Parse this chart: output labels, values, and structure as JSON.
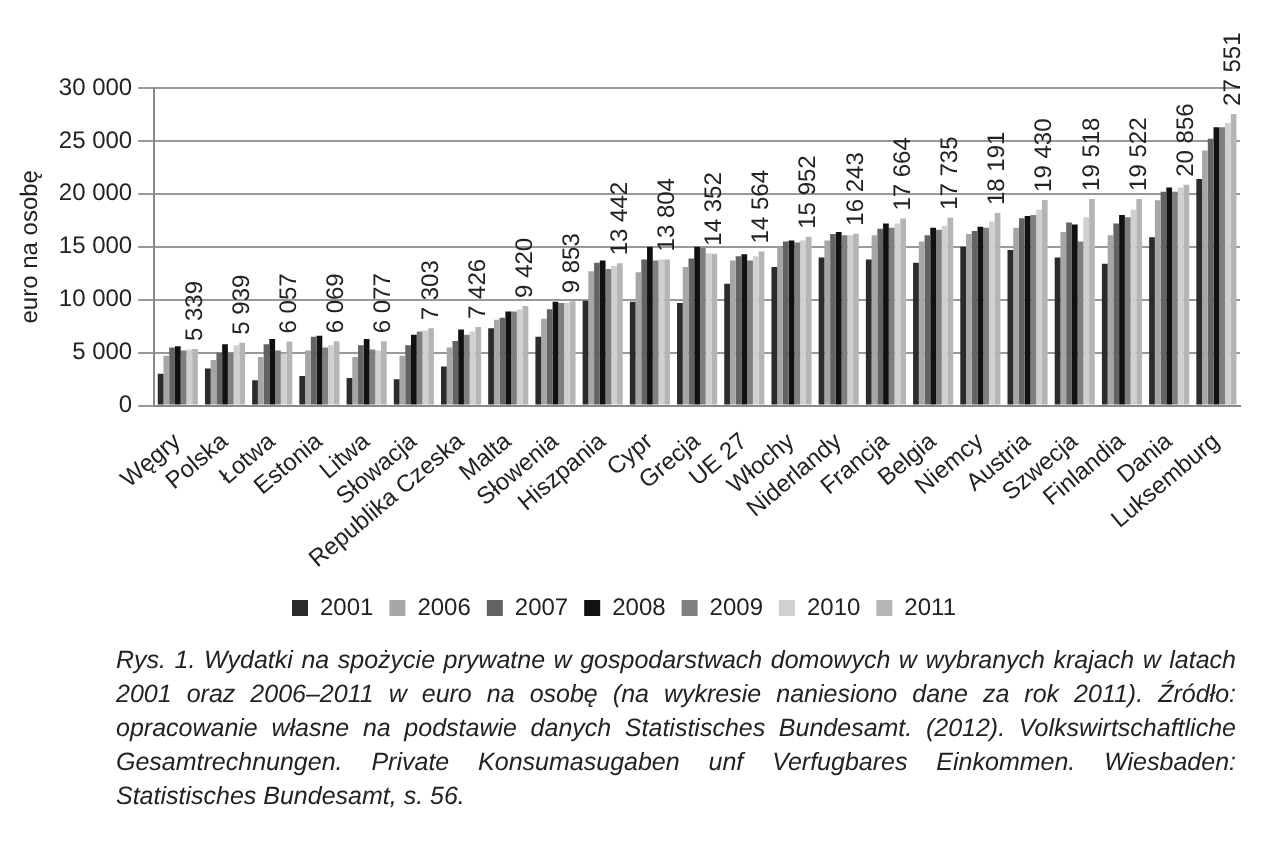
{
  "chart_data": {
    "type": "bar",
    "ylabel": "euro na osobę",
    "categories": [
      "Węgry",
      "Polska",
      "Łotwa",
      "Estonia",
      "Litwa",
      "Słowacja",
      "Republika Czeska",
      "Malta",
      "Słowenia",
      "Hiszpania",
      "Cypr",
      "Grecja",
      "UE 27",
      "Włochy",
      "Niderlandy",
      "Francja",
      "Belgia",
      "Niemcy",
      "Austria",
      "Szwecja",
      "Finlandia",
      "Dania",
      "Luksemburg"
    ],
    "series": [
      {
        "name": "2001",
        "color": "#2b2b2b",
        "values": [
          3000,
          3500,
          2400,
          2800,
          2600,
          2500,
          3700,
          7300,
          6500,
          9900,
          9800,
          9700,
          11500,
          13100,
          14000,
          13800,
          13500,
          15000,
          14700,
          14000,
          13400,
          15900,
          21400
        ]
      },
      {
        "name": "2006",
        "color": "#a6a6a6",
        "values": [
          4700,
          4300,
          4600,
          5200,
          4600,
          4700,
          5500,
          8100,
          8200,
          12700,
          12600,
          13100,
          13700,
          14900,
          15600,
          16100,
          15500,
          16200,
          16800,
          16400,
          16100,
          19400,
          24100
        ]
      },
      {
        "name": "2007",
        "color": "#636363",
        "values": [
          5500,
          5000,
          5800,
          6500,
          5700,
          5700,
          6100,
          8300,
          9100,
          13500,
          13800,
          13900,
          14100,
          15500,
          16200,
          16700,
          16100,
          16500,
          17700,
          17300,
          17200,
          20200,
          25200
        ]
      },
      {
        "name": "2008",
        "color": "#111111",
        "values": [
          5600,
          5800,
          6300,
          6600,
          6300,
          6700,
          7200,
          8900,
          9800,
          13700,
          15000,
          15000,
          14300,
          15600,
          16400,
          17200,
          16800,
          16900,
          17900,
          17100,
          18000,
          20600,
          26300
        ]
      },
      {
        "name": "2009",
        "color": "#7f7f7f",
        "values": [
          5200,
          5000,
          5200,
          5500,
          5300,
          7000,
          6700,
          8900,
          9700,
          12900,
          13700,
          14900,
          13700,
          15400,
          16100,
          16800,
          16600,
          16800,
          18000,
          15500,
          17800,
          20200,
          26300
        ]
      },
      {
        "name": "2010",
        "color": "#d0d0d0",
        "values": [
          5300,
          5700,
          4900,
          5700,
          5200,
          7100,
          7000,
          9100,
          9700,
          13200,
          13800,
          14400,
          14100,
          15600,
          16100,
          17200,
          17000,
          17400,
          18500,
          17800,
          18500,
          20600,
          26700
        ]
      },
      {
        "name": "2011",
        "color": "#b5b5b5",
        "values": [
          5339,
          5939,
          6057,
          6069,
          6077,
          7303,
          7426,
          9420,
          9853,
          13442,
          13804,
          14352,
          14564,
          15952,
          16243,
          17664,
          17735,
          18191,
          19430,
          19518,
          19522,
          20856,
          27551
        ],
        "value_labels": [
          "5 339",
          "5 939",
          "6 057",
          "6 069",
          "6 077",
          "7 303",
          "7 426",
          "9 420",
          "9 853",
          "13 442",
          "13 804",
          "14 352",
          "14 564",
          "15 952",
          "16 243",
          "17 664",
          "17 735",
          "18 191",
          "19 430",
          "19 518",
          "19 522",
          "20 856",
          "27 551"
        ]
      }
    ],
    "ylim": [
      0,
      30000
    ],
    "yticks": [
      {
        "value": 0,
        "label": "0"
      },
      {
        "value": 5000,
        "label": "5 000"
      },
      {
        "value": 10000,
        "label": "10 000"
      },
      {
        "value": 15000,
        "label": "15 000"
      },
      {
        "value": 20000,
        "label": "20 000"
      },
      {
        "value": 25000,
        "label": "25 000"
      },
      {
        "value": 30000,
        "label": "30 000"
      }
    ],
    "grid": "y",
    "legend": "bottom",
    "annotations": [
      "Rys. 1. Wydatki na spożycie prywatne w gospodarstwach domowych w wybranych krajach w latach 2001 oraz 2006–2011 w euro na osobę (na wykresie naniesiono dane za rok 2011). Źródło: opracowanie własne na podstawie danych Statistisches Bundesamt. (2012). Volkswirtschaftliche Gesamtrechnungen. Private Konsumasugaben unf Verfugbares Einkommen. Wiesbaden: Statistisches Bundesamt, s. 56."
    ]
  }
}
